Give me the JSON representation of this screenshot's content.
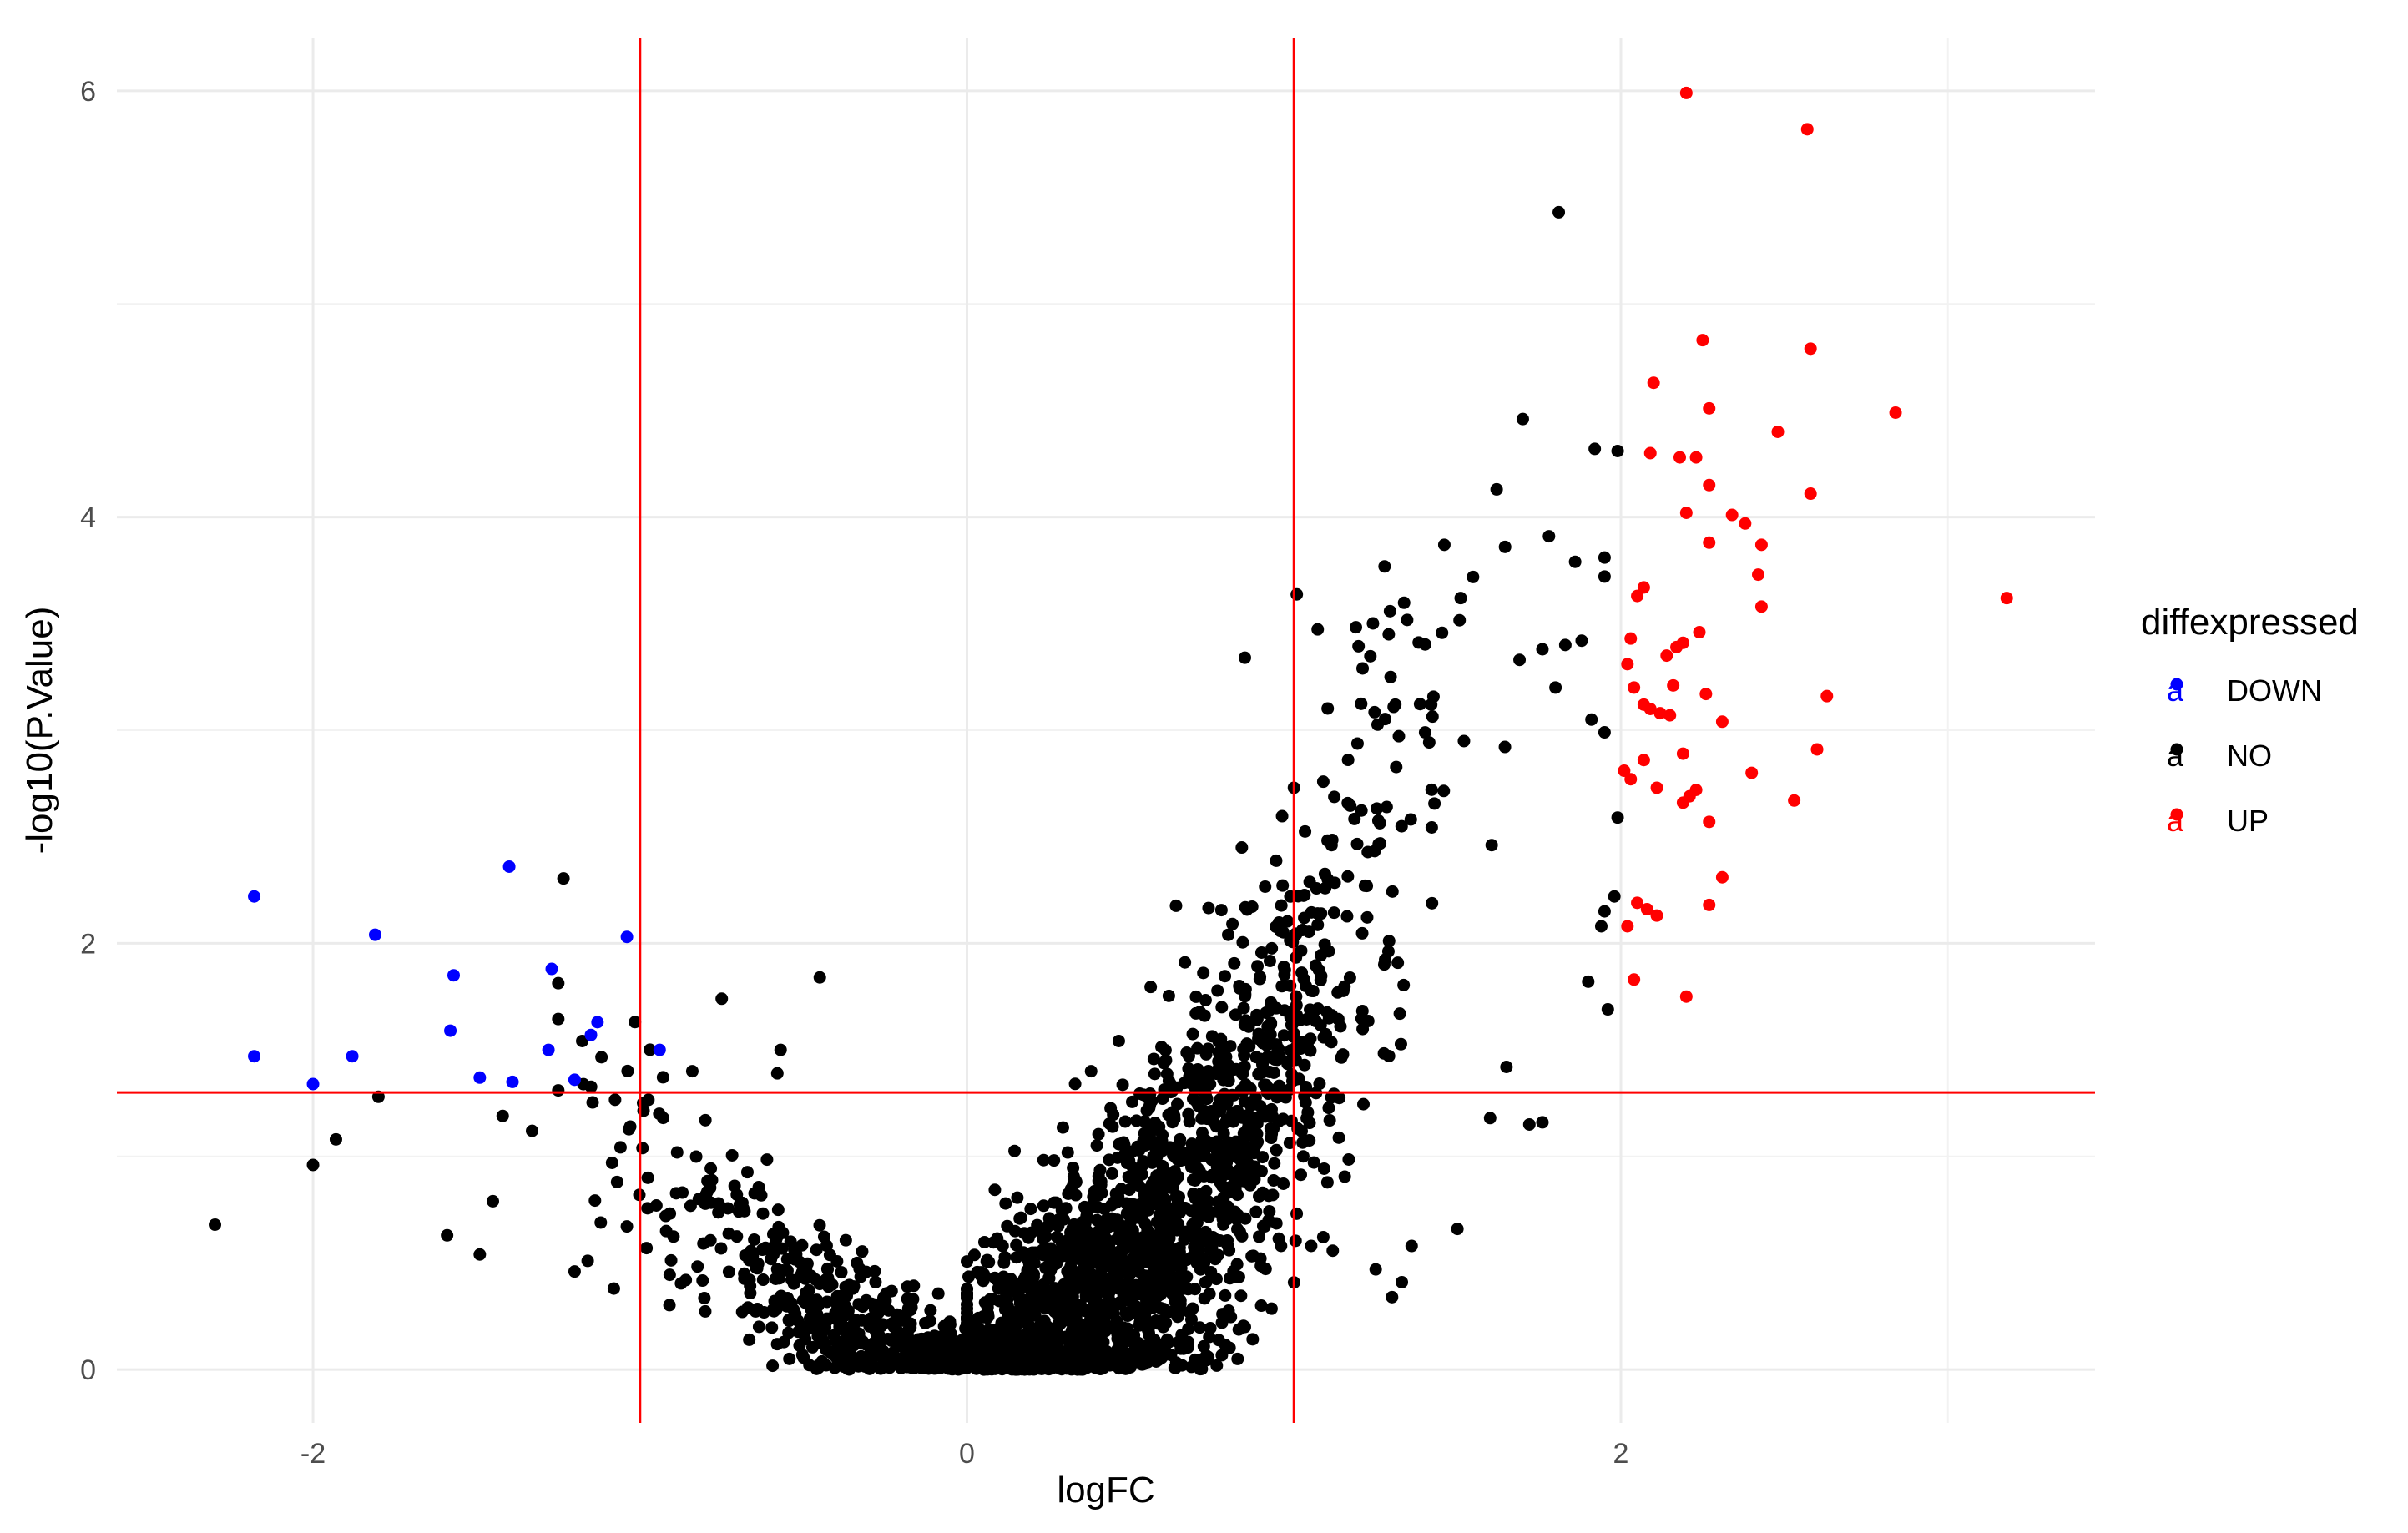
{
  "chart_data": {
    "type": "scatter",
    "title": "",
    "xlabel": "logFC",
    "ylabel": "-log10(P.Value)",
    "xlim": [
      -2.6,
      3.45
    ],
    "ylim": [
      -0.25,
      6.25
    ],
    "x_ticks": [
      -2,
      0,
      2
    ],
    "y_ticks": [
      0,
      2,
      4,
      6
    ],
    "x_tick_labels": [
      "-2",
      "0",
      "2"
    ],
    "y_tick_labels": [
      "0",
      "2",
      "4",
      "6"
    ],
    "grid": true,
    "legend": {
      "title": "diffexpressed",
      "position": "right",
      "key_glyph": "a",
      "entries": [
        {
          "label": "DOWN",
          "color": "#0000ff"
        },
        {
          "label": "NO",
          "color": "#000000"
        },
        {
          "label": "UP",
          "color": "#ff0000"
        }
      ]
    },
    "threshold_lines": {
      "color": "#ff0000",
      "vertical_x": [
        -1,
        1
      ],
      "horizontal_y": [
        1.3
      ]
    },
    "background_model": {
      "note_series": "NO",
      "n_points": 2600
    },
    "series": [
      {
        "name": "DOWN",
        "color": "#0000ff",
        "points": [
          [
            -2.18,
            2.22
          ],
          [
            -2.18,
            1.47
          ],
          [
            -2.0,
            1.34
          ],
          [
            -1.81,
            2.04
          ],
          [
            -1.88,
            1.47
          ],
          [
            -1.4,
            2.36
          ],
          [
            -1.57,
            1.85
          ],
          [
            -1.58,
            1.59
          ],
          [
            -1.49,
            1.37
          ],
          [
            -1.39,
            1.35
          ],
          [
            -1.28,
            1.5
          ],
          [
            -1.27,
            1.88
          ],
          [
            -1.2,
            1.36
          ],
          [
            -1.15,
            1.57
          ],
          [
            -1.13,
            1.63
          ],
          [
            -1.04,
            2.03
          ],
          [
            -0.94,
            1.5
          ]
        ]
      },
      {
        "name": "NO",
        "color": "#000000",
        "points": [
          [
            -2.3,
            0.68
          ],
          [
            -2.0,
            0.96
          ],
          [
            -1.93,
            1.08
          ],
          [
            -1.8,
            1.28
          ],
          [
            -1.59,
            0.63
          ],
          [
            -1.49,
            0.54
          ],
          [
            -1.45,
            0.79
          ],
          [
            -1.42,
            1.19
          ],
          [
            -1.33,
            1.12
          ],
          [
            -1.25,
            1.31
          ],
          [
            -1.2,
            0.46
          ],
          [
            -1.16,
            0.51
          ],
          [
            -1.12,
            0.69
          ],
          [
            -1.08,
            0.38
          ],
          [
            -1.07,
            0.88
          ],
          [
            -1.03,
            1.14
          ],
          [
            -0.98,
            0.57
          ],
          [
            -0.95,
            0.77
          ],
          [
            -0.92,
            0.65
          ],
          [
            -0.86,
            0.42
          ],
          [
            -0.82,
            0.8
          ],
          [
            -0.84,
            1.4
          ],
          [
            -0.8,
            1.17
          ],
          [
            -0.75,
            1.74
          ],
          [
            -0.57,
            1.5
          ],
          [
            -0.58,
            1.39
          ],
          [
            -0.45,
            1.84
          ],
          [
            0.85,
            3.34
          ],
          [
            1.0,
            2.73
          ],
          [
            1.81,
            5.43
          ],
          [
            1.7,
            4.46
          ],
          [
            1.92,
            4.32
          ],
          [
            1.99,
            4.31
          ],
          [
            1.72,
            1.15
          ],
          [
            1.6,
            1.18
          ],
          [
            1.3,
            0.34
          ],
          [
            1.25,
            0.47
          ],
          [
            0.85,
            0.2
          ],
          [
            1.33,
            0.41
          ],
          [
            1.36,
            0.58
          ],
          [
            1.5,
            0.66
          ],
          [
            1.65,
            1.42
          ],
          [
            1.76,
            1.16
          ],
          [
            0.42,
            0.23
          ],
          [
            0.57,
            0.31
          ],
          [
            0.68,
            0.27
          ],
          [
            0.78,
            0.22
          ],
          [
            0.9,
            0.3
          ],
          [
            1.78,
            3.91
          ],
          [
            1.62,
            4.13
          ],
          [
            1.51,
            3.62
          ],
          [
            1.46,
            3.87
          ],
          [
            1.29,
            3.45
          ],
          [
            1.21,
            3.29
          ],
          [
            1.86,
            3.79
          ],
          [
            1.91,
            3.05
          ],
          [
            1.95,
            2.99
          ],
          [
            1.99,
            2.59
          ],
          [
            1.98,
            2.22
          ],
          [
            1.95,
            2.15
          ],
          [
            1.94,
            2.08
          ],
          [
            1.9,
            1.82
          ],
          [
            1.96,
            1.69
          ],
          [
            1.88,
            3.42
          ],
          [
            1.83,
            3.4
          ],
          [
            1.76,
            3.38
          ],
          [
            1.69,
            3.33
          ],
          [
            1.8,
            3.2
          ]
        ]
      },
      {
        "name": "UP",
        "color": "#ff0000",
        "points": [
          [
            2.2,
            5.99
          ],
          [
            2.57,
            5.82
          ],
          [
            2.25,
            4.83
          ],
          [
            2.58,
            4.79
          ],
          [
            2.1,
            4.63
          ],
          [
            2.27,
            4.51
          ],
          [
            2.84,
            4.49
          ],
          [
            2.48,
            4.4
          ],
          [
            2.09,
            4.3
          ],
          [
            2.18,
            4.28
          ],
          [
            2.23,
            4.28
          ],
          [
            2.27,
            4.15
          ],
          [
            2.58,
            4.11
          ],
          [
            2.2,
            4.02
          ],
          [
            2.34,
            4.01
          ],
          [
            2.38,
            3.97
          ],
          [
            2.43,
            3.87
          ],
          [
            2.27,
            3.88
          ],
          [
            2.42,
            3.73
          ],
          [
            2.43,
            3.58
          ],
          [
            3.18,
            3.62
          ],
          [
            2.05,
            3.63
          ],
          [
            2.07,
            3.67
          ],
          [
            2.03,
            3.43
          ],
          [
            2.24,
            3.46
          ],
          [
            2.14,
            3.35
          ],
          [
            2.17,
            3.39
          ],
          [
            2.19,
            3.41
          ],
          [
            2.02,
            3.31
          ],
          [
            2.04,
            3.2
          ],
          [
            2.16,
            3.21
          ],
          [
            2.09,
            3.1
          ],
          [
            2.07,
            3.12
          ],
          [
            2.12,
            3.08
          ],
          [
            2.15,
            3.07
          ],
          [
            2.26,
            3.17
          ],
          [
            2.63,
            3.16
          ],
          [
            2.31,
            3.04
          ],
          [
            2.07,
            2.86
          ],
          [
            2.19,
            2.89
          ],
          [
            2.6,
            2.91
          ],
          [
            2.01,
            2.81
          ],
          [
            2.03,
            2.77
          ],
          [
            2.11,
            2.73
          ],
          [
            2.23,
            2.72
          ],
          [
            2.19,
            2.66
          ],
          [
            2.21,
            2.69
          ],
          [
            2.4,
            2.8
          ],
          [
            2.53,
            2.67
          ],
          [
            2.27,
            2.57
          ],
          [
            2.31,
            2.31
          ],
          [
            2.05,
            2.19
          ],
          [
            2.08,
            2.16
          ],
          [
            2.11,
            2.13
          ],
          [
            2.27,
            2.18
          ],
          [
            2.02,
            2.08
          ],
          [
            2.04,
            1.83
          ],
          [
            2.2,
            1.75
          ]
        ]
      }
    ]
  }
}
